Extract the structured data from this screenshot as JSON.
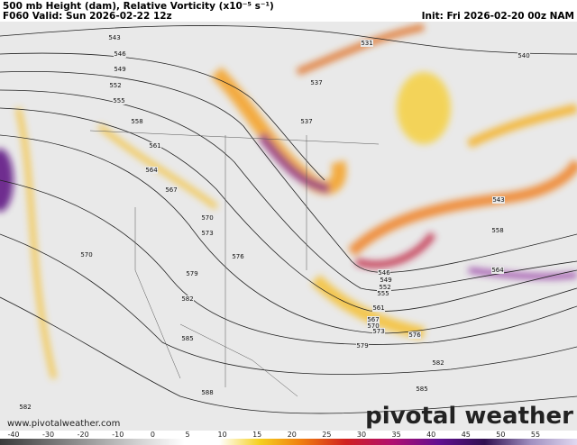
{
  "header": {
    "title": "500 mb Height (dam), Relative Vorticity (x10⁻⁵ s⁻¹)",
    "valid": "F060 Valid: Sun 2026-02-22 12z",
    "init": "Init: Fri 2026-02-20 00z NAM"
  },
  "map": {
    "contour_labels": [
      543,
      546,
      549,
      552,
      555,
      558,
      561,
      564,
      567,
      570,
      573,
      576,
      579,
      582,
      585,
      588,
      570,
      582,
      531,
      537,
      537,
      540,
      543,
      558,
      564,
      546,
      549,
      552,
      555,
      561,
      567,
      570,
      573,
      576,
      579,
      582,
      585
    ]
  },
  "colorbar": {
    "ticks": [
      -40,
      -30,
      -20,
      -10,
      0,
      5,
      10,
      15,
      20,
      25,
      30,
      35,
      40,
      45,
      50,
      55
    ]
  },
  "footer": {
    "watermark": "www.pivotalweather.com",
    "logo": "pivotal weather"
  }
}
